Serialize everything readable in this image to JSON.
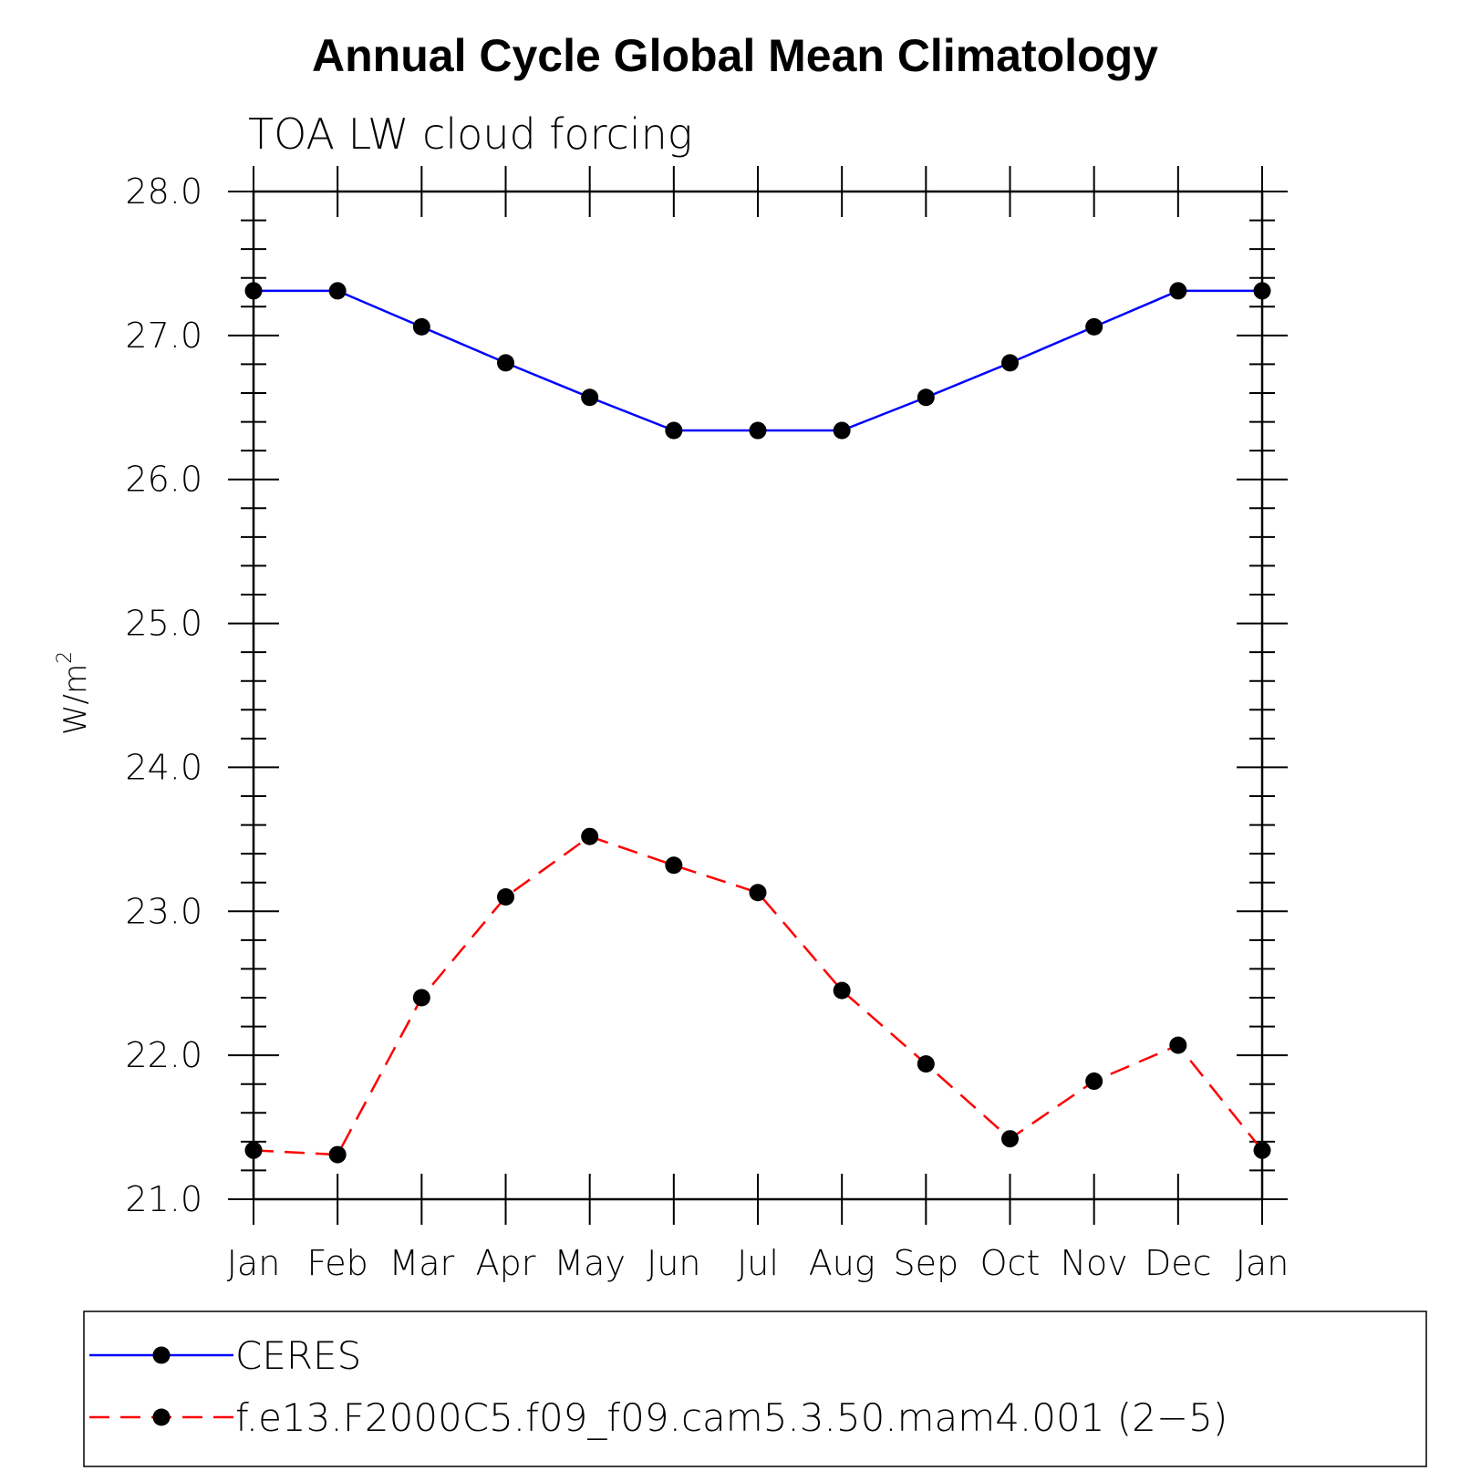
{
  "chart_data": {
    "type": "line",
    "title": "Annual Cycle Global Mean Climatology",
    "subtitle": "TOA LW cloud forcing",
    "ylabel": "W/m",
    "ylabel_superscript": "2",
    "xlabel": "",
    "ylim": [
      21.0,
      28.0
    ],
    "y_ticks": [
      "21.0",
      "22.0",
      "23.0",
      "24.0",
      "25.0",
      "26.0",
      "27.0",
      "28.0"
    ],
    "categories": [
      "Jan",
      "Feb",
      "Mar",
      "Apr",
      "May",
      "Jun",
      "Jul",
      "Aug",
      "Sep",
      "Oct",
      "Nov",
      "Dec",
      "Jan"
    ],
    "series": [
      {
        "name": "CERES",
        "color": "#0000ff",
        "dash": "solid",
        "values": [
          27.31,
          27.31,
          27.06,
          26.81,
          26.57,
          26.34,
          26.34,
          26.34,
          26.57,
          26.81,
          27.06,
          27.31,
          27.31
        ]
      },
      {
        "name": "f.e13.F2000C5.f09_f09.cam5.3.50.mam4.001 (2−5)",
        "color": "#ff0000",
        "dash": "dashed",
        "values": [
          21.34,
          21.31,
          22.4,
          23.1,
          23.52,
          23.32,
          23.13,
          22.45,
          21.94,
          21.42,
          21.82,
          22.07,
          21.34
        ]
      }
    ],
    "legend_position": "bottom"
  }
}
